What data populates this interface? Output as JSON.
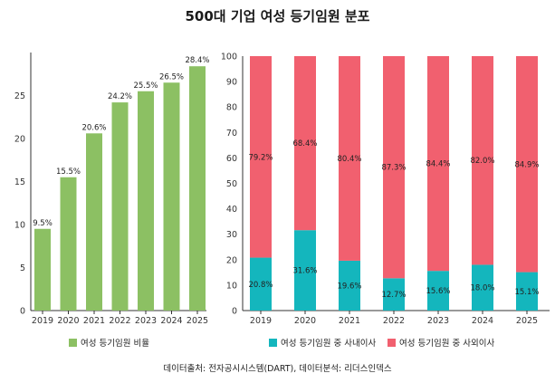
{
  "title": "500대 기업 여성 등기임원 분포",
  "source_note": "데이터출처: 전자공시시스템(DART), 데이터분석: 리더스인덱스",
  "colors": {
    "green": "#8cc063",
    "teal": "#14b6bd",
    "pink": "#f1606f"
  },
  "chart_data": [
    {
      "type": "bar",
      "categories": [
        "2019",
        "2020",
        "2021",
        "2022",
        "2023",
        "2024",
        "2025"
      ],
      "series": [
        {
          "name": "여성 등기임원 비율",
          "values": [
            9.5,
            15.5,
            20.6,
            24.2,
            25.5,
            26.5,
            28.4
          ]
        }
      ],
      "data_labels": [
        "9.5%",
        "15.5%",
        "20.6%",
        "24.2%",
        "25.5%",
        "26.5%",
        "28.4%"
      ],
      "ylim": [
        0,
        30
      ],
      "yticks": [
        0,
        5,
        10,
        15,
        20,
        25
      ],
      "grid": false,
      "legend": "bottom"
    },
    {
      "type": "bar",
      "stacked": true,
      "categories": [
        "2019",
        "2020",
        "2021",
        "2022",
        "2023",
        "2024",
        "2025"
      ],
      "series": [
        {
          "name": "여성 등기임원 중 사내이사",
          "values": [
            20.8,
            31.6,
            19.6,
            12.7,
            15.6,
            18.0,
            15.1
          ],
          "labels": [
            "20.8%",
            "31.6%",
            "19.6%",
            "12.7%",
            "15.6%",
            "18.0%",
            "15.1%"
          ]
        },
        {
          "name": "여성 등기임원 중 사외이사",
          "values": [
            79.2,
            68.4,
            80.4,
            87.3,
            84.4,
            82.0,
            84.9
          ],
          "labels": [
            "79.2%",
            "68.4%",
            "80.4%",
            "87.3%",
            "84.4%",
            "82.0%",
            "84.9%"
          ]
        }
      ],
      "ylim": [
        0,
        100
      ],
      "yticks": [
        0,
        10,
        20,
        30,
        40,
        50,
        60,
        70,
        80,
        90,
        100
      ],
      "grid": false,
      "legend": "bottom"
    }
  ]
}
